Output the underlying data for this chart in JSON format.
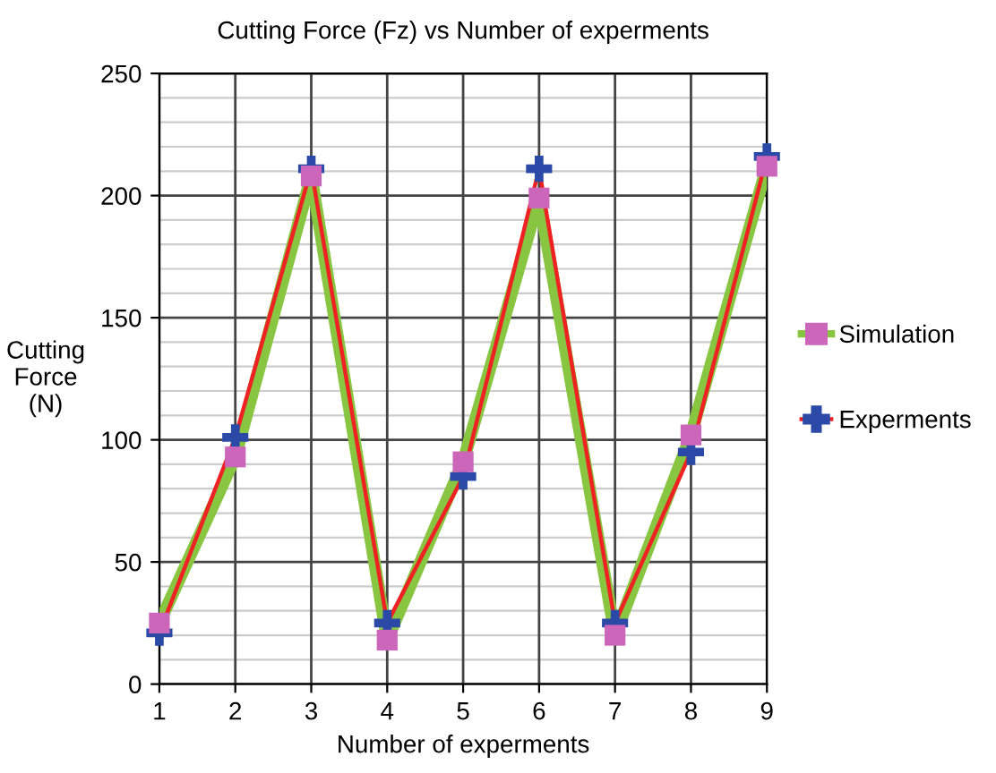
{
  "chart_data": {
    "type": "line",
    "title": "Cutting Force (Fz) vs Number of experments",
    "xlabel": "Number of experments",
    "ylabel": "Cutting\nForce\n(N)",
    "x": [
      1,
      2,
      3,
      4,
      5,
      6,
      7,
      8,
      9
    ],
    "series": [
      {
        "name": "Simulation",
        "color": "#88c540",
        "colors": [
          "#cc66bb",
          "#cc66bb",
          "#cc66bb",
          "#cc66bb",
          "#cc66bb",
          "#cc66bb",
          "#cc66bb",
          "#cc66bb",
          "#cc66bb"
        ],
        "marker": "square",
        "values": [
          25,
          93,
          208,
          18,
          91,
          199,
          20,
          102,
          212
        ]
      },
      {
        "name": "Experments",
        "color": "#ee2222",
        "colors": [
          "#2b4aa8",
          "#2b4aa8",
          "#2b4aa8",
          "#2b4aa8",
          "#2b4aa8",
          "#2b4aa8",
          "#2b4aa8",
          "#2b4aa8",
          "#2b4aa8"
        ],
        "marker": "cross",
        "values": [
          21,
          101,
          211,
          25,
          85,
          211,
          25,
          95,
          216
        ]
      }
    ],
    "xlim": [
      1,
      9
    ],
    "xticks": [
      1,
      2,
      3,
      4,
      5,
      6,
      7,
      8,
      9
    ],
    "ylim": [
      0,
      250
    ],
    "yticks": [
      0,
      50,
      100,
      150,
      200,
      250
    ],
    "grid": true,
    "legend": "right",
    "line_style": "solid"
  }
}
